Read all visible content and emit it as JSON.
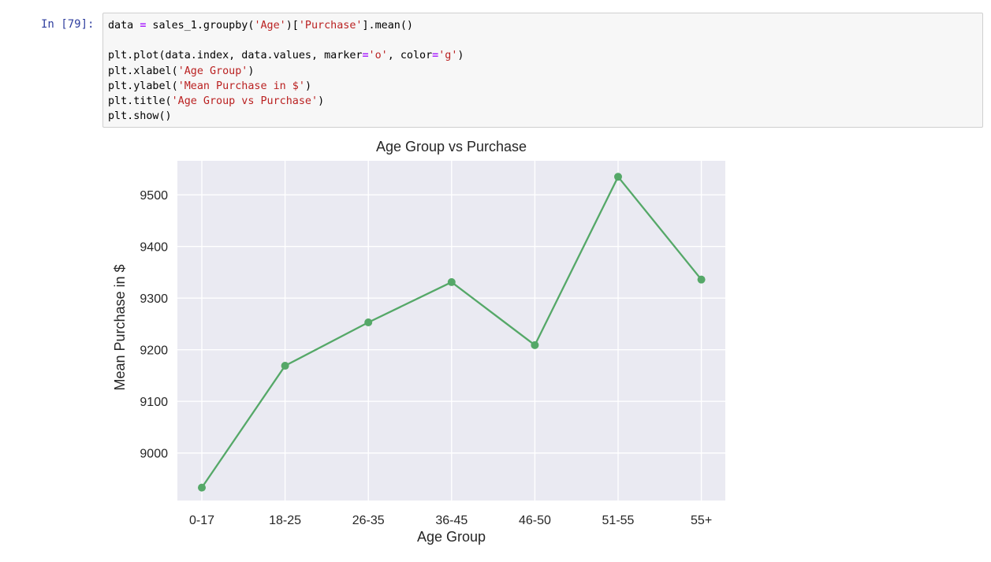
{
  "cell": {
    "prompt": "In [79]:",
    "code_lines": [
      [
        {
          "t": "data ",
          "c": ""
        },
        {
          "t": "=",
          "c": "op"
        },
        {
          "t": " sales_1.groupby(",
          "c": ""
        },
        {
          "t": "'Age'",
          "c": "str"
        },
        {
          "t": ")[",
          "c": ""
        },
        {
          "t": "'Purchase'",
          "c": "str"
        },
        {
          "t": "].mean()",
          "c": ""
        }
      ],
      [],
      [
        {
          "t": "plt.plot(data.index, data.values, marker",
          "c": ""
        },
        {
          "t": "=",
          "c": "op"
        },
        {
          "t": "'o'",
          "c": "str"
        },
        {
          "t": ", color",
          "c": ""
        },
        {
          "t": "=",
          "c": "op"
        },
        {
          "t": "'g'",
          "c": "str"
        },
        {
          "t": ")",
          "c": ""
        }
      ],
      [
        {
          "t": "plt.xlabel(",
          "c": ""
        },
        {
          "t": "'Age Group'",
          "c": "str"
        },
        {
          "t": ")",
          "c": ""
        }
      ],
      [
        {
          "t": "plt.ylabel(",
          "c": ""
        },
        {
          "t": "'Mean Purchase in $'",
          "c": "str"
        },
        {
          "t": ")",
          "c": ""
        }
      ],
      [
        {
          "t": "plt.title(",
          "c": ""
        },
        {
          "t": "'Age Group vs Purchase'",
          "c": "str"
        },
        {
          "t": ")",
          "c": ""
        }
      ],
      [
        {
          "t": "plt.show()",
          "c": ""
        }
      ]
    ]
  },
  "chart_data": {
    "type": "line",
    "title": "Age Group vs Purchase",
    "xlabel": "Age Group",
    "ylabel": "Mean Purchase in $",
    "categories": [
      "0-17",
      "18-25",
      "26-35",
      "36-45",
      "46-50",
      "51-55",
      "55+"
    ],
    "values": [
      8933,
      9169,
      9253,
      9331,
      9209,
      9535,
      9336
    ],
    "yticks": [
      9000,
      9100,
      9200,
      9300,
      9400,
      9500
    ],
    "ylim": [
      8908,
      9566
    ],
    "marker": "o",
    "color": "#55a868",
    "background": "#eaeaf2",
    "grid": true,
    "legend": "none"
  }
}
